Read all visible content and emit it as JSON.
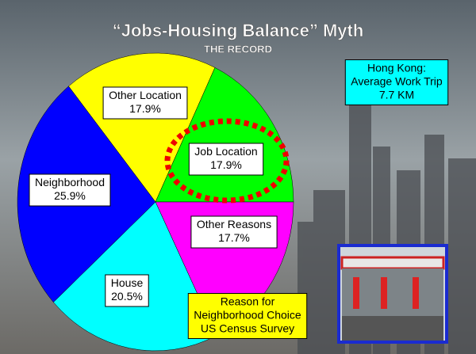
{
  "chart_data": {
    "type": "pie",
    "title": "“Jobs-Housing Balance” Myth",
    "subtitle": "THE RECORD",
    "categories": [
      "Other Location",
      "Job Location",
      "Other Reasons",
      "House",
      "Neighborhood"
    ],
    "values": [
      17.9,
      17.9,
      17.7,
      20.5,
      25.9
    ],
    "value_labels": [
      "17.9%",
      "17.9%",
      "17.7%",
      "20.5%",
      "25.9%"
    ],
    "colors": [
      "#ffff00",
      "#00ff00",
      "#ff00ff",
      "#00ffff",
      "#0000ff"
    ],
    "annotations": [
      {
        "lines": [
          "Hong Kong:",
          "Average Work Trip",
          "7.7 KM"
        ]
      },
      {
        "lines": [
          "Reason for",
          "Neighborhood Choice",
          "US Census Survey"
        ]
      }
    ]
  }
}
